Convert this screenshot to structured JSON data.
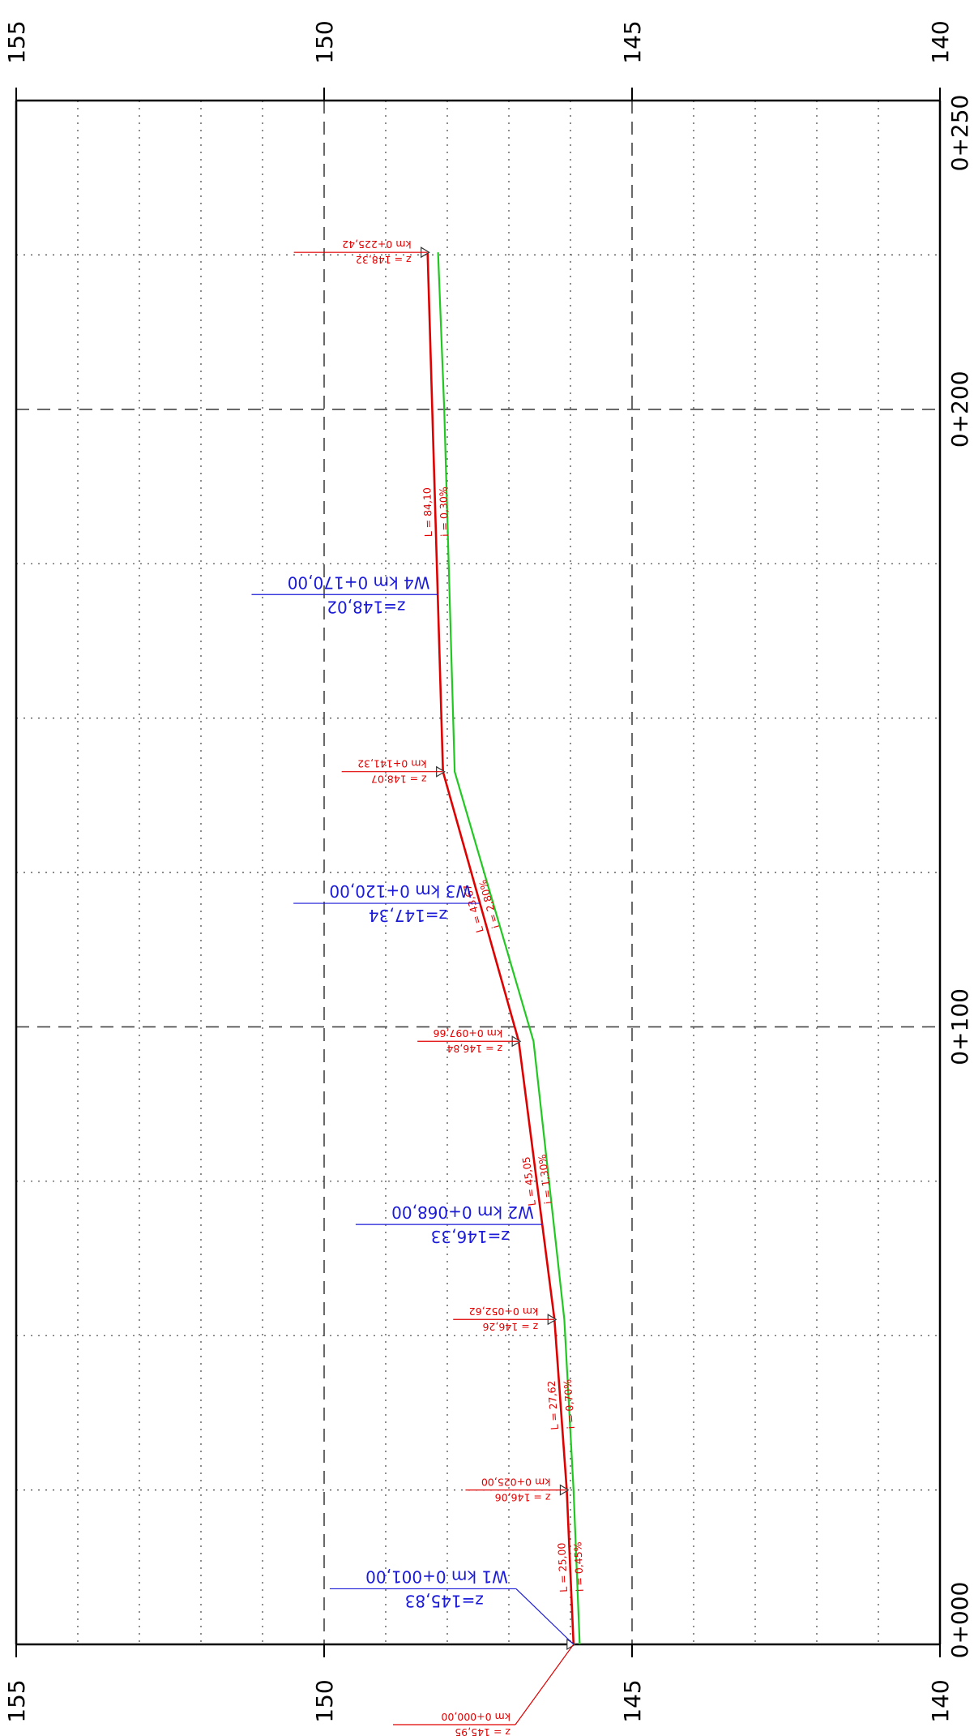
{
  "colors": {
    "grid": "#444444",
    "design_line": "#e00000",
    "terrain_line": "#22c822",
    "blue_labels": "#1a1ad8",
    "red_labels": "#e00000",
    "frame": "#000000"
  },
  "elevation_axis": {
    "range": [
      140,
      155
    ],
    "labels": [
      "155",
      "150",
      "145",
      "140"
    ],
    "label_values": [
      155,
      150,
      145,
      140
    ],
    "minor_step": 1
  },
  "chainage_axis": {
    "range": [
      0,
      250
    ],
    "labels": [
      "0+000",
      "0+100",
      "0+200",
      "0+250"
    ],
    "label_values": [
      0,
      100,
      200,
      250
    ],
    "dotted_step": 25
  },
  "design_profile": [
    {
      "km": 0,
      "z": 145.95
    },
    {
      "km": 25.0,
      "z": 146.06
    },
    {
      "km": 52.62,
      "z": 146.26
    },
    {
      "km": 97.66,
      "z": 146.84
    },
    {
      "km": 141.32,
      "z": 148.07
    },
    {
      "km": 225.42,
      "z": 148.32
    }
  ],
  "terrain_profile": [
    {
      "km": 0,
      "z": 145.85
    },
    {
      "km": 25.0,
      "z": 145.95
    },
    {
      "km": 52.62,
      "z": 146.1
    },
    {
      "km": 97.66,
      "z": 146.6
    },
    {
      "km": 141.32,
      "z": 147.88
    },
    {
      "km": 200.0,
      "z": 148.05
    },
    {
      "km": 225.42,
      "z": 148.15
    }
  ],
  "vertex_labels": [
    {
      "km": 0,
      "z": 145.95,
      "km_text": "km 0+000,00",
      "z_text": "z = 145,95"
    },
    {
      "km": 25.0,
      "z": 146.06,
      "km_text": "km 0+025,00",
      "z_text": "z = 146,06"
    },
    {
      "km": 52.62,
      "z": 146.26,
      "km_text": "km 0+052,62",
      "z_text": "z = 146,26"
    },
    {
      "km": 97.66,
      "z": 146.84,
      "km_text": "km 0+097,66",
      "z_text": "z = 146,84"
    },
    {
      "km": 141.32,
      "z": 148.07,
      "km_text": "km 0+141,32",
      "z_text": "z = 148,07"
    },
    {
      "km": 225.42,
      "z": 148.32,
      "km_text": "km 0+225,42",
      "z_text": "z = 148,32"
    }
  ],
  "segment_labels": [
    {
      "from": 0,
      "to": 25.0,
      "length": "L = 25,00",
      "slope": "i = 0,45%"
    },
    {
      "from": 25.0,
      "to": 52.62,
      "length": "L = 27,62",
      "slope": "i = 0,70%"
    },
    {
      "from": 52.62,
      "to": 97.66,
      "length": "L = 45,05",
      "slope": "i = 1,30%"
    },
    {
      "from": 97.66,
      "to": 141.32,
      "length": "L = 43,67",
      "slope": "i = 2,80%"
    },
    {
      "from": 141.32,
      "to": 225.42,
      "length": "L = 84,10",
      "slope": "i = 0,30%"
    }
  ],
  "wells": [
    {
      "km": 1.0,
      "z": 145.83,
      "label": "W1 km 0+001,00",
      "z_text": "z=145,83"
    },
    {
      "km": 68.0,
      "z": 146.33,
      "label": "W2 km 0+068,00",
      "z_text": "z=146,33"
    },
    {
      "km": 120.0,
      "z": 147.34,
      "label": "W3 km 0+120,00",
      "z_text": "z=147,34"
    },
    {
      "km": 170.0,
      "z": 148.02,
      "label": "W4 km 0+170,00",
      "z_text": "z=148,02"
    }
  ]
}
